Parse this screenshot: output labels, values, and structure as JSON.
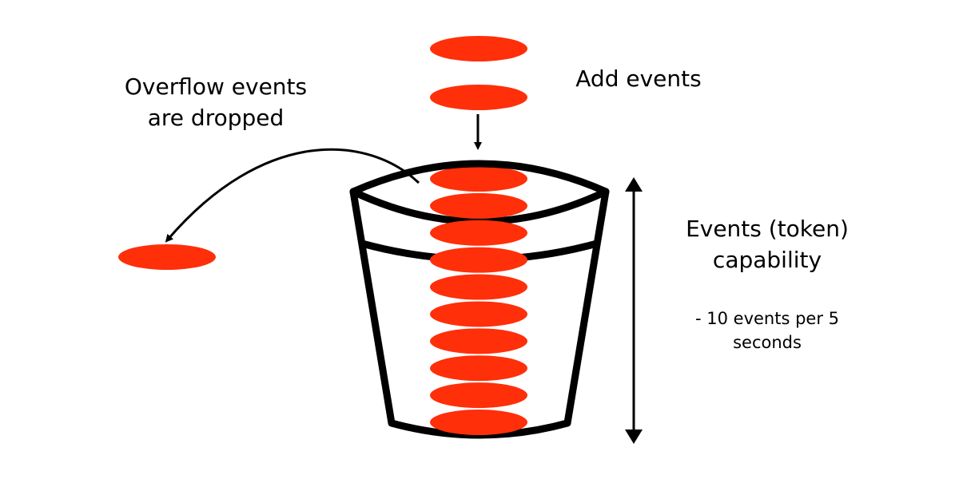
{
  "labels": {
    "overflow_line1": "Overflow events",
    "overflow_line2": "are dropped",
    "add_events": "Add events",
    "capacity_line1": "Events (token)",
    "capacity_line2": "capability",
    "capacity_note_line1": "- 10 events per 5",
    "capacity_note_line2": "seconds"
  },
  "colors": {
    "token": "#ff2f0a",
    "stroke": "#000000",
    "background": "#ffffff"
  },
  "tokens": {
    "incoming_count": 2,
    "in_bucket_count": 10,
    "dropped_count": 1
  }
}
